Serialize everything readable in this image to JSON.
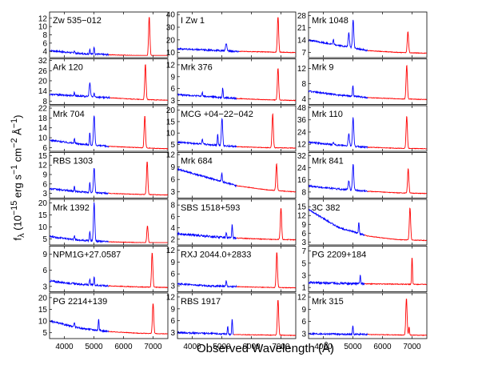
{
  "figure": {
    "xlabel": "Observed Wavelength (Å)",
    "ylabel_html": "f<sub>λ</sub> (10<sup>−15</sup> erg s<sup>−1</sup> cm<sup>−2</sup> Å<sup>−1</sup>)",
    "ylabel_plain": "fλ (10−15 erg s−1 cm−2 Å−1)"
  },
  "colors": {
    "blue_segment": "#0000ff",
    "red_segment": "#ff0000",
    "axes": "#000000"
  },
  "chart_data": [
    {
      "type": "line",
      "title": "Zw 535−012",
      "x_range": [
        3500,
        7500
      ],
      "y_ticks": [
        4,
        6,
        8,
        10,
        12
      ],
      "ylim": [
        2.5,
        13.5
      ],
      "split_x": 5500,
      "continuum": [
        [
          3500,
          4.2
        ],
        [
          4500,
          3.5
        ],
        [
          5500,
          3.2
        ],
        [
          6500,
          3.0
        ],
        [
          7500,
          2.9
        ]
      ],
      "lines": [
        [
          4340,
          0.6
        ],
        [
          4861,
          1.2
        ],
        [
          5007,
          1.8
        ],
        [
          6870,
          9.5
        ]
      ]
    },
    {
      "type": "line",
      "title": "Ark 120",
      "x_range": [
        3500,
        7500
      ],
      "y_ticks": [
        8,
        14,
        20,
        26,
        32
      ],
      "ylim": [
        6,
        33
      ],
      "split_x": 5550,
      "continuum": [
        [
          3500,
          12
        ],
        [
          4500,
          11
        ],
        [
          5500,
          10
        ],
        [
          6500,
          9
        ],
        [
          7500,
          8.5
        ]
      ],
      "lines": [
        [
          4340,
          2
        ],
        [
          4861,
          8
        ],
        [
          5007,
          2
        ],
        [
          6740,
          21
        ]
      ]
    },
    {
      "type": "line",
      "title": "Mrk 704",
      "x_range": [
        3500,
        7500
      ],
      "y_ticks": [
        6,
        10,
        14,
        18,
        22
      ],
      "ylim": [
        4.5,
        23
      ],
      "split_x": 5500,
      "continuum": [
        [
          3500,
          9
        ],
        [
          4500,
          7.5
        ],
        [
          5500,
          6.5
        ],
        [
          6500,
          6
        ],
        [
          7500,
          5.5
        ]
      ],
      "lines": [
        [
          4340,
          2
        ],
        [
          4861,
          5
        ],
        [
          5007,
          12
        ],
        [
          6720,
          13
        ]
      ]
    },
    {
      "type": "line",
      "title": "RBS 1303",
      "x_range": [
        3500,
        7500
      ],
      "y_ticks": [
        3,
        6,
        9,
        12,
        15
      ],
      "ylim": [
        1.5,
        16
      ],
      "split_x": 5500,
      "continuum": [
        [
          3500,
          4.5
        ],
        [
          4500,
          3.5
        ],
        [
          5500,
          3
        ],
        [
          6500,
          2.7
        ],
        [
          7500,
          2.5
        ]
      ],
      "lines": [
        [
          4340,
          1.5
        ],
        [
          4861,
          3
        ],
        [
          5007,
          8
        ],
        [
          6800,
          10.5
        ]
      ]
    },
    {
      "type": "line",
      "title": "Mrk 1392",
      "x_range": [
        3500,
        7500
      ],
      "y_ticks": [
        5,
        10,
        15,
        20
      ],
      "ylim": [
        2.5,
        21.5
      ],
      "split_x": 5500,
      "continuum": [
        [
          3500,
          6
        ],
        [
          4500,
          4.5
        ],
        [
          5500,
          3.8
        ],
        [
          6500,
          3.5
        ],
        [
          7500,
          3.3
        ]
      ],
      "lines": [
        [
          4340,
          1.5
        ],
        [
          4861,
          4
        ],
        [
          5007,
          16
        ],
        [
          6810,
          7
        ]
      ]
    },
    {
      "type": "line",
      "title": "NPM1G+27.0587",
      "x_range": [
        3500,
        7500
      ],
      "y_ticks": [
        3,
        6,
        9
      ],
      "ylim": [
        2,
        10.5
      ],
      "split_x": 5500,
      "continuum": [
        [
          3500,
          4
        ],
        [
          4500,
          3.4
        ],
        [
          5500,
          3.1
        ],
        [
          6500,
          2.9
        ],
        [
          7500,
          2.8
        ]
      ],
      "lines": [
        [
          4861,
          1
        ],
        [
          5007,
          1.5
        ],
        [
          6970,
          6.5
        ]
      ]
    },
    {
      "type": "line",
      "title": "PG 2214+139",
      "x_range": [
        3500,
        7500
      ],
      "y_ticks": [
        5,
        10,
        15,
        20
      ],
      "ylim": [
        2.5,
        22
      ],
      "split_x": 5500,
      "continuum": [
        [
          3500,
          10
        ],
        [
          4500,
          7
        ],
        [
          5500,
          5.5
        ],
        [
          6500,
          4.8
        ],
        [
          7500,
          4.5
        ]
      ],
      "lines": [
        [
          4340,
          2
        ],
        [
          5160,
          5
        ],
        [
          7000,
          13
        ]
      ]
    },
    {
      "type": "line",
      "title": "I Zw 1",
      "x_range": [
        3500,
        7500
      ],
      "y_ticks": [
        10,
        20,
        30,
        40
      ],
      "ylim": [
        6,
        42
      ],
      "split_x": 5600,
      "continuum": [
        [
          3500,
          13
        ],
        [
          4500,
          12
        ],
        [
          5500,
          11
        ],
        [
          6500,
          10.5
        ],
        [
          7500,
          10
        ]
      ],
      "lines": [
        [
          5150,
          6
        ],
        [
          6900,
          28
        ]
      ]
    },
    {
      "type": "line",
      "title": "Mrk 376",
      "x_range": [
        3500,
        7500
      ],
      "y_ticks": [
        3,
        6,
        9,
        12
      ],
      "ylim": [
        2,
        13.5
      ],
      "split_x": 5500,
      "continuum": [
        [
          3500,
          4.5
        ],
        [
          4500,
          4
        ],
        [
          5500,
          3.5
        ],
        [
          6500,
          3.2
        ],
        [
          7500,
          3
        ]
      ],
      "lines": [
        [
          4340,
          1
        ],
        [
          5030,
          2.5
        ],
        [
          6900,
          8
        ]
      ]
    },
    {
      "type": "line",
      "title": "MCG +04−22−042",
      "x_range": [
        3500,
        7500
      ],
      "y_ticks": [
        5,
        10,
        15,
        20
      ],
      "ylim": [
        2,
        22
      ],
      "split_x": 5500,
      "continuum": [
        [
          3500,
          6
        ],
        [
          4500,
          5
        ],
        [
          5500,
          4
        ],
        [
          6500,
          3.6
        ],
        [
          7500,
          3.4
        ]
      ],
      "lines": [
        [
          4340,
          2
        ],
        [
          4861,
          5
        ],
        [
          5007,
          12
        ],
        [
          6720,
          15
        ]
      ]
    },
    {
      "type": "line",
      "title": "Mrk 684",
      "x_range": [
        3500,
        7500
      ],
      "y_ticks": [
        3,
        6,
        9,
        12
      ],
      "ylim": [
        1.5,
        12.5
      ],
      "split_x": 5500,
      "continuum": [
        [
          3500,
          8.5
        ],
        [
          4500,
          6.5
        ],
        [
          5500,
          4.5
        ],
        [
          6500,
          3.5
        ],
        [
          7500,
          3
        ]
      ],
      "lines": [
        [
          5000,
          2
        ],
        [
          6850,
          6.5
        ]
      ]
    },
    {
      "type": "line",
      "title": "SBS 1518+593",
      "x_range": [
        3500,
        7500
      ],
      "y_ticks": [
        2,
        4,
        6,
        8
      ],
      "ylim": [
        1,
        9
      ],
      "split_x": 5500,
      "continuum": [
        [
          3500,
          3
        ],
        [
          4500,
          2.5
        ],
        [
          5500,
          2.2
        ],
        [
          6500,
          2
        ],
        [
          7500,
          1.9
        ]
      ],
      "lines": [
        [
          5150,
          1
        ],
        [
          5350,
          2.5
        ],
        [
          7000,
          5.5
        ]
      ]
    },
    {
      "type": "line",
      "title": "RXJ 2044.0+2833",
      "x_range": [
        3500,
        7500
      ],
      "y_ticks": [
        3,
        6,
        9,
        12
      ],
      "ylim": [
        1.5,
        13
      ],
      "split_x": 5500,
      "continuum": [
        [
          3500,
          3.5
        ],
        [
          4500,
          3
        ],
        [
          5500,
          2.8
        ],
        [
          6500,
          2.6
        ],
        [
          7500,
          2.5
        ]
      ],
      "lines": [
        [
          5150,
          1.5
        ],
        [
          6860,
          9
        ]
      ]
    },
    {
      "type": "line",
      "title": "RBS 1917",
      "x_range": [
        3500,
        7500
      ],
      "y_ticks": [
        3,
        6,
        9,
        12
      ],
      "ylim": [
        1.5,
        13
      ],
      "split_x": 5400,
      "continuum": [
        [
          3500,
          3
        ],
        [
          4500,
          2.8
        ],
        [
          5500,
          2.5
        ],
        [
          6500,
          2.4
        ],
        [
          7500,
          2.3
        ]
      ],
      "lines": [
        [
          5200,
          2
        ],
        [
          5350,
          4
        ],
        [
          6900,
          9
        ]
      ]
    },
    {
      "type": "line",
      "title": "Mrk 1048",
      "x_range": [
        3500,
        7500
      ],
      "y_ticks": [
        7,
        14,
        21,
        28
      ],
      "ylim": [
        4,
        30
      ],
      "split_x": 5500,
      "continuum": [
        [
          3500,
          14
        ],
        [
          4500,
          11
        ],
        [
          5500,
          8
        ],
        [
          6500,
          7
        ],
        [
          7500,
          6.5
        ]
      ],
      "lines": [
        [
          4340,
          3
        ],
        [
          4861,
          8
        ],
        [
          5007,
          16
        ],
        [
          6860,
          12
        ]
      ]
    },
    {
      "type": "line",
      "title": "Mrk 9",
      "x_range": [
        3500,
        7500
      ],
      "y_ticks": [
        4,
        8,
        12
      ],
      "ylim": [
        2.5,
        14.5
      ],
      "split_x": 5500,
      "continuum": [
        [
          3500,
          6
        ],
        [
          4500,
          5
        ],
        [
          5500,
          4.3
        ],
        [
          6500,
          4
        ],
        [
          7500,
          3.8
        ]
      ],
      "lines": [
        [
          5000,
          3
        ],
        [
          6820,
          9
        ]
      ]
    },
    {
      "type": "line",
      "title": "Mrk 110",
      "x_range": [
        3500,
        7500
      ],
      "y_ticks": [
        12,
        24,
        36,
        48
      ],
      "ylim": [
        5,
        50
      ],
      "split_x": 5500,
      "continuum": [
        [
          3500,
          14
        ],
        [
          4500,
          11
        ],
        [
          5500,
          9
        ],
        [
          6500,
          8
        ],
        [
          7500,
          7.5
        ]
      ],
      "lines": [
        [
          4340,
          3
        ],
        [
          4861,
          12
        ],
        [
          5007,
          28
        ],
        [
          6820,
          32
        ]
      ]
    },
    {
      "type": "line",
      "title": "Mrk 841",
      "x_range": [
        3500,
        7500
      ],
      "y_ticks": [
        8,
        16,
        24,
        32
      ],
      "ylim": [
        4,
        34
      ],
      "split_x": 5500,
      "continuum": [
        [
          3500,
          12
        ],
        [
          4500,
          10
        ],
        [
          5500,
          8.5
        ],
        [
          6500,
          7.5
        ],
        [
          7500,
          7
        ]
      ],
      "lines": [
        [
          4861,
          6
        ],
        [
          5007,
          17
        ],
        [
          6870,
          16
        ]
      ]
    },
    {
      "type": "line",
      "title": "3C 382",
      "x_range": [
        3500,
        7500
      ],
      "y_ticks": [
        3,
        6,
        9,
        12,
        15
      ],
      "ylim": [
        2,
        17.5
      ],
      "split_x": 5400,
      "continuum": [
        [
          3500,
          14
        ],
        [
          4500,
          8
        ],
        [
          5500,
          5
        ],
        [
          6500,
          3.8
        ],
        [
          7500,
          3.5
        ]
      ],
      "lines": [
        [
          5200,
          4
        ],
        [
          6930,
          11
        ]
      ]
    },
    {
      "type": "line",
      "title": "PG 2209+184",
      "x_range": [
        3500,
        7500
      ],
      "y_ticks": [
        1,
        3,
        5,
        7
      ],
      "ylim": [
        0.3,
        7.8
      ],
      "split_x": 5400,
      "continuum": [
        [
          3500,
          1.8
        ],
        [
          4500,
          1.7
        ],
        [
          5500,
          1.6
        ],
        [
          6500,
          1.55
        ],
        [
          7500,
          1.5
        ]
      ],
      "lines": [
        [
          5250,
          1.5
        ],
        [
          7000,
          4.5
        ]
      ]
    },
    {
      "type": "line",
      "title": "Mrk 315",
      "x_range": [
        3500,
        7500
      ],
      "y_ticks": [
        3,
        6,
        9,
        12
      ],
      "ylim": [
        1.8,
        13
      ],
      "split_x": 5500,
      "continuum": [
        [
          3500,
          3
        ],
        [
          4500,
          2.9
        ],
        [
          5500,
          2.8
        ],
        [
          6500,
          2.7
        ],
        [
          7500,
          2.6
        ]
      ],
      "lines": [
        [
          5000,
          2
        ],
        [
          6810,
          9
        ],
        [
          6900,
          2
        ]
      ]
    }
  ]
}
